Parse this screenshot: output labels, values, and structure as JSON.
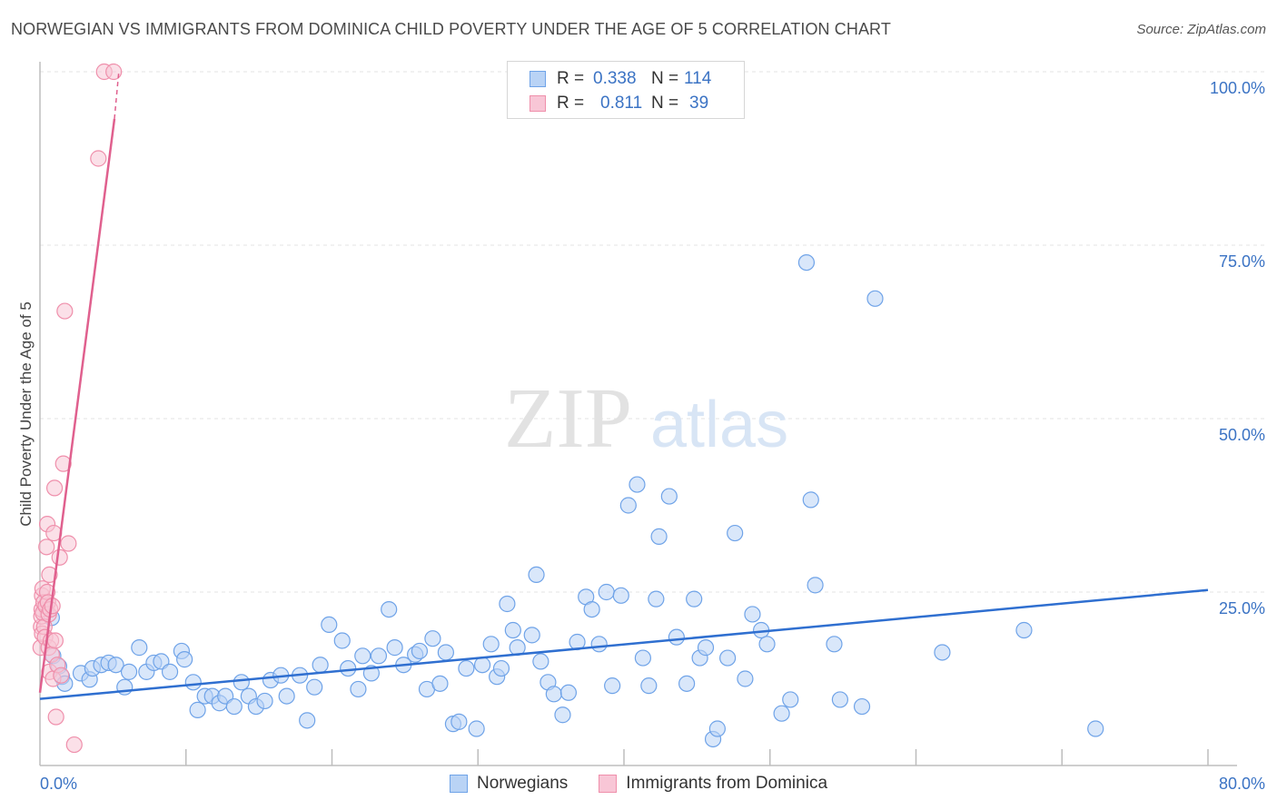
{
  "title": "NORWEGIAN VS IMMIGRANTS FROM DOMINICA CHILD POVERTY UNDER THE AGE OF 5 CORRELATION CHART",
  "source": "Source: ZipAtlas.com",
  "watermark": {
    "zip": "ZIP",
    "atlas": "atlas"
  },
  "legend": {
    "rows": [
      {
        "r_label": "R =",
        "r_value": "0.338",
        "n_label": "N =",
        "n_value": "114",
        "color": "#6fa3e8",
        "fill": "#b9d3f5"
      },
      {
        "r_label": "R =",
        "r_value": "0.811",
        "n_label": "N =",
        "n_value": "39",
        "color": "#ef8fab",
        "fill": "#f8c6d6"
      }
    ]
  },
  "bottom_legend": [
    {
      "label": "Norwegians",
      "color": "#6fa3e8",
      "fill": "#b9d3f5"
    },
    {
      "label": "Immigrants from Dominica",
      "color": "#ef8fab",
      "fill": "#f8c6d6"
    }
  ],
  "chart_data": {
    "type": "scatter",
    "title": "NORWEGIAN VS IMMIGRANTS FROM DOMINICA CHILD POVERTY UNDER THE AGE OF 5 CORRELATION CHART",
    "xlabel": "",
    "ylabel": "Child Poverty Under the Age of 5",
    "xlim": [
      0,
      80
    ],
    "ylim": [
      0,
      100
    ],
    "x_tick_labels": {
      "left": "0.0%",
      "right": "80.0%"
    },
    "y_ticks": [
      {
        "value": 25,
        "label": "25.0%"
      },
      {
        "value": 50,
        "label": "50.0%"
      },
      {
        "value": 75,
        "label": "75.0%"
      },
      {
        "value": 100,
        "label": "100.0%"
      }
    ],
    "grid": "horizontal dashed",
    "series": [
      {
        "name": "Norwegians",
        "color": "#6fa3e8",
        "trend": {
          "x": [
            0,
            80
          ],
          "y": [
            9.6,
            25.3
          ],
          "color": "#2f6fd0"
        },
        "points": [
          [
            0.8,
            21.3
          ],
          [
            0.9,
            15.8
          ],
          [
            1.3,
            14.3
          ],
          [
            1.5,
            12.8
          ],
          [
            1.7,
            11.8
          ],
          [
            2.8,
            13.3
          ],
          [
            3.4,
            12.4
          ],
          [
            3.6,
            14.0
          ],
          [
            4.2,
            14.5
          ],
          [
            4.7,
            14.8
          ],
          [
            5.2,
            14.5
          ],
          [
            5.8,
            11.3
          ],
          [
            6.1,
            13.5
          ],
          [
            6.8,
            17.0
          ],
          [
            7.3,
            13.5
          ],
          [
            7.8,
            14.8
          ],
          [
            8.3,
            15.0
          ],
          [
            8.9,
            13.5
          ],
          [
            9.7,
            16.5
          ],
          [
            9.9,
            15.3
          ],
          [
            10.5,
            12.0
          ],
          [
            10.8,
            8.0
          ],
          [
            11.3,
            10.0
          ],
          [
            11.8,
            10.0
          ],
          [
            12.3,
            9.0
          ],
          [
            12.7,
            10.0
          ],
          [
            13.3,
            8.5
          ],
          [
            13.8,
            12.0
          ],
          [
            14.3,
            10.0
          ],
          [
            14.8,
            8.5
          ],
          [
            15.4,
            9.3
          ],
          [
            15.8,
            12.3
          ],
          [
            16.5,
            13.0
          ],
          [
            16.9,
            10.0
          ],
          [
            17.8,
            13.0
          ],
          [
            18.3,
            6.5
          ],
          [
            18.8,
            11.3
          ],
          [
            19.2,
            14.5
          ],
          [
            19.8,
            20.3
          ],
          [
            20.7,
            18.0
          ],
          [
            21.1,
            14.0
          ],
          [
            21.8,
            11.0
          ],
          [
            22.1,
            15.8
          ],
          [
            22.7,
            13.3
          ],
          [
            23.2,
            15.8
          ],
          [
            23.9,
            22.5
          ],
          [
            24.3,
            17.0
          ],
          [
            24.9,
            14.5
          ],
          [
            25.7,
            16.0
          ],
          [
            26.0,
            16.5
          ],
          [
            26.5,
            11.0
          ],
          [
            26.9,
            18.3
          ],
          [
            27.4,
            11.8
          ],
          [
            27.8,
            16.3
          ],
          [
            28.3,
            6.0
          ],
          [
            28.7,
            6.3
          ],
          [
            29.2,
            14.0
          ],
          [
            29.9,
            5.3
          ],
          [
            30.3,
            14.5
          ],
          [
            30.9,
            17.5
          ],
          [
            31.3,
            12.8
          ],
          [
            31.6,
            14.0
          ],
          [
            32.0,
            23.3
          ],
          [
            32.4,
            19.5
          ],
          [
            32.7,
            17.0
          ],
          [
            33.7,
            18.8
          ],
          [
            34.0,
            27.5
          ],
          [
            34.3,
            15.0
          ],
          [
            34.8,
            12.0
          ],
          [
            35.2,
            10.3
          ],
          [
            35.8,
            7.3
          ],
          [
            36.2,
            10.5
          ],
          [
            36.8,
            17.8
          ],
          [
            37.4,
            24.3
          ],
          [
            37.8,
            22.5
          ],
          [
            38.3,
            17.5
          ],
          [
            38.8,
            25.0
          ],
          [
            39.2,
            11.5
          ],
          [
            39.8,
            24.5
          ],
          [
            40.3,
            37.5
          ],
          [
            40.9,
            40.5
          ],
          [
            41.3,
            15.5
          ],
          [
            41.7,
            11.5
          ],
          [
            42.2,
            24.0
          ],
          [
            42.4,
            33.0
          ],
          [
            43.1,
            38.8
          ],
          [
            43.6,
            18.5
          ],
          [
            44.3,
            11.8
          ],
          [
            44.8,
            24.0
          ],
          [
            45.2,
            15.5
          ],
          [
            45.6,
            17.0
          ],
          [
            46.1,
            3.8
          ],
          [
            46.4,
            5.3
          ],
          [
            47.1,
            15.5
          ],
          [
            47.6,
            33.5
          ],
          [
            48.3,
            12.5
          ],
          [
            48.8,
            21.8
          ],
          [
            49.4,
            19.5
          ],
          [
            49.8,
            17.5
          ],
          [
            50.8,
            7.5
          ],
          [
            51.4,
            9.5
          ],
          [
            52.5,
            72.5
          ],
          [
            52.8,
            38.3
          ],
          [
            53.1,
            26.0
          ],
          [
            54.4,
            17.5
          ],
          [
            54.8,
            9.5
          ],
          [
            56.3,
            8.5
          ],
          [
            57.2,
            67.3
          ],
          [
            61.8,
            16.3
          ],
          [
            67.4,
            19.5
          ],
          [
            72.3,
            5.3
          ]
        ]
      },
      {
        "name": "Immigrants from Dominica",
        "color": "#ef8fab",
        "trend": {
          "x": [
            0,
            5.1
          ],
          "y": [
            10.5,
            93.2
          ],
          "dash_to": [
            5.4,
            100
          ],
          "color": "#e0608e"
        },
        "points": [
          [
            0.05,
            17.0
          ],
          [
            0.08,
            20.0
          ],
          [
            0.1,
            21.5
          ],
          [
            0.12,
            22.5
          ],
          [
            0.15,
            19.0
          ],
          [
            0.15,
            24.5
          ],
          [
            0.18,
            25.5
          ],
          [
            0.2,
            22.0
          ],
          [
            0.25,
            23.5
          ],
          [
            0.3,
            20.0
          ],
          [
            0.35,
            18.5
          ],
          [
            0.4,
            23.0
          ],
          [
            0.45,
            31.5
          ],
          [
            0.5,
            34.8
          ],
          [
            0.5,
            25.0
          ],
          [
            0.55,
            23.5
          ],
          [
            0.6,
            17.0
          ],
          [
            0.6,
            21.8
          ],
          [
            0.65,
            13.5
          ],
          [
            0.65,
            27.5
          ],
          [
            0.7,
            22.5
          ],
          [
            0.75,
            18.0
          ],
          [
            0.8,
            16.0
          ],
          [
            0.85,
            23.0
          ],
          [
            0.9,
            12.5
          ],
          [
            0.95,
            33.5
          ],
          [
            1.0,
            40.0
          ],
          [
            1.05,
            18.0
          ],
          [
            1.1,
            7.0
          ],
          [
            1.2,
            14.5
          ],
          [
            1.35,
            30.0
          ],
          [
            1.45,
            13.0
          ],
          [
            1.6,
            43.5
          ],
          [
            1.7,
            65.5
          ],
          [
            1.95,
            32.0
          ],
          [
            2.35,
            3.0
          ],
          [
            4.0,
            87.5
          ],
          [
            4.4,
            100.0
          ],
          [
            5.05,
            100.0
          ]
        ]
      }
    ]
  }
}
